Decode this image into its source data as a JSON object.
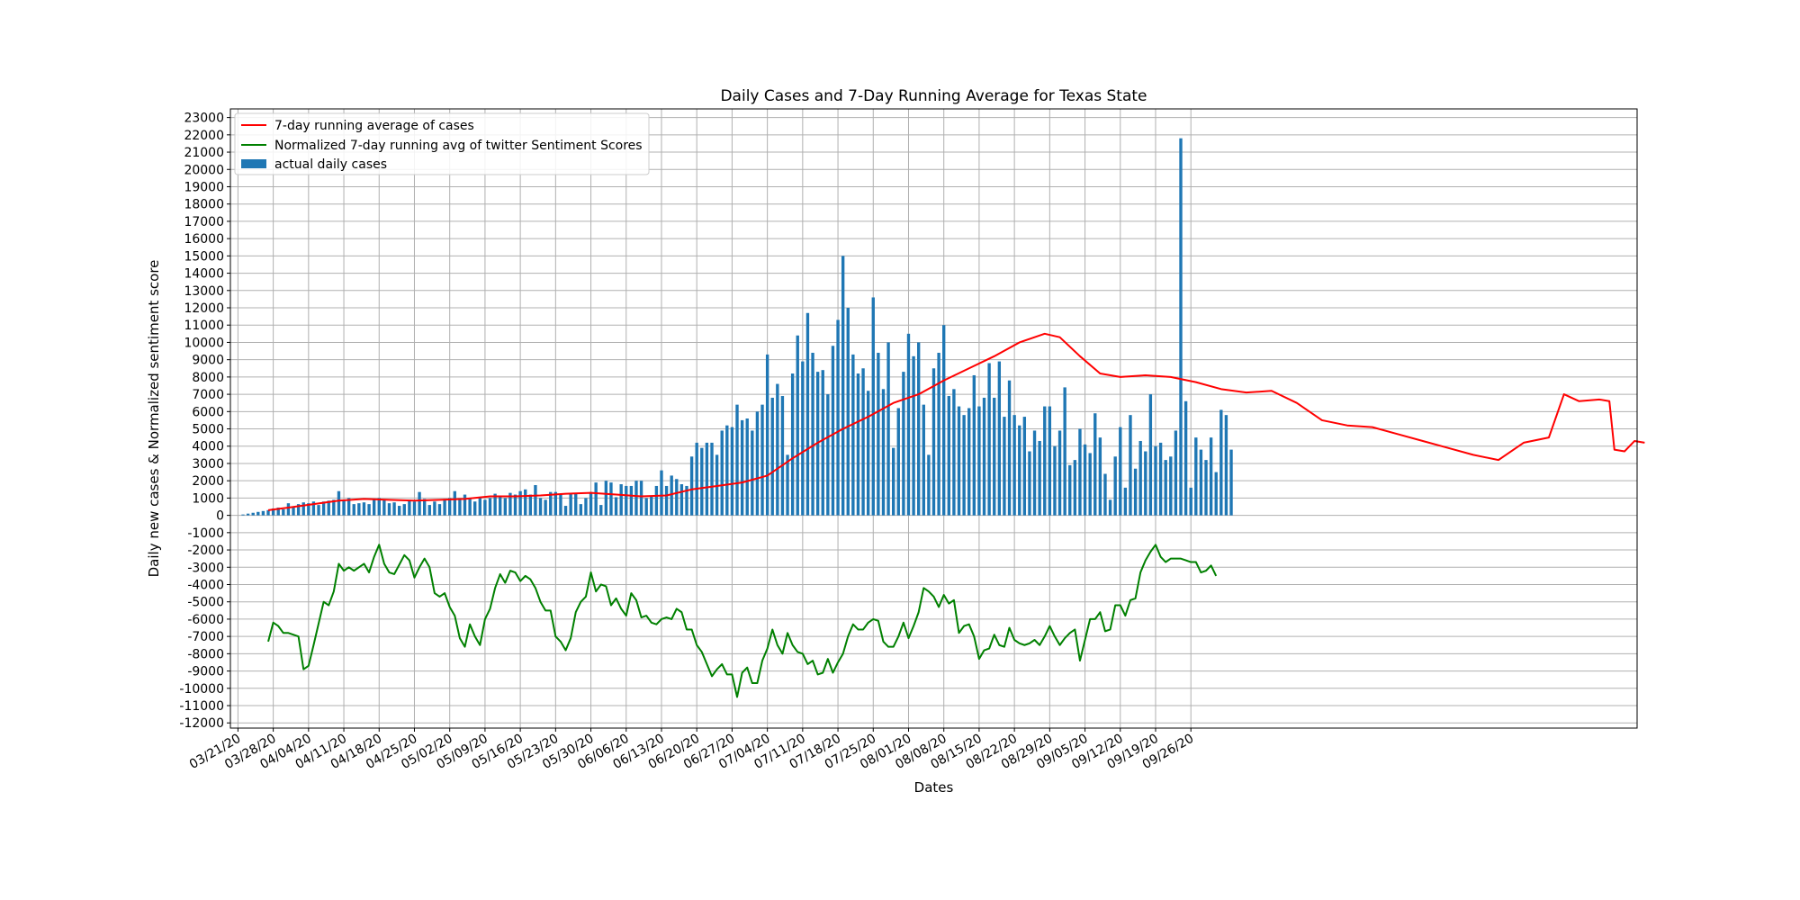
{
  "chart_data": {
    "type": "bar+line",
    "title": "Daily Cases and 7-Day Running Average for Texas State",
    "xlabel": "Dates",
    "ylabel": "Daily new cases & Normalized sentiment score",
    "ylim": [
      -12300,
      23500
    ],
    "yticks": [
      -12000,
      -11000,
      -10000,
      -9000,
      -8000,
      -7000,
      -6000,
      -5000,
      -4000,
      -3000,
      -2000,
      -1000,
      0,
      1000,
      2000,
      3000,
      4000,
      5000,
      6000,
      7000,
      8000,
      9000,
      10000,
      11000,
      12000,
      13000,
      14000,
      15000,
      16000,
      17000,
      18000,
      19000,
      20000,
      21000,
      22000,
      23000
    ],
    "date_start": "03/21/20",
    "num_days": 193,
    "xtick_labels": [
      "03/21/20",
      "03/28/20",
      "04/04/20",
      "04/11/20",
      "04/18/20",
      "04/25/20",
      "05/02/20",
      "05/09/20",
      "05/16/20",
      "05/23/20",
      "05/30/20",
      "06/06/20",
      "06/13/20",
      "06/20/20",
      "06/27/20",
      "07/04/20",
      "07/11/20",
      "07/18/20",
      "07/25/20",
      "08/01/20",
      "08/08/20",
      "08/15/20",
      "08/22/20",
      "08/29/20",
      "09/05/20",
      "09/12/20",
      "09/19/20",
      "09/26/20"
    ],
    "grid": true,
    "legend_position": "upper-left",
    "series": [
      {
        "name": "7-day running average of cases",
        "kind": "line",
        "color": "#ff0000",
        "anchors": [
          [
            6,
            300
          ],
          [
            10,
            450
          ],
          [
            15,
            650
          ],
          [
            20,
            850
          ],
          [
            25,
            950
          ],
          [
            30,
            900
          ],
          [
            35,
            850
          ],
          [
            40,
            900
          ],
          [
            45,
            950
          ],
          [
            50,
            1100
          ],
          [
            55,
            1100
          ],
          [
            60,
            1150
          ],
          [
            65,
            1250
          ],
          [
            70,
            1300
          ],
          [
            75,
            1200
          ],
          [
            80,
            1100
          ],
          [
            85,
            1150
          ],
          [
            90,
            1500
          ],
          [
            95,
            1700
          ],
          [
            100,
            1900
          ],
          [
            105,
            2300
          ],
          [
            110,
            3300
          ],
          [
            115,
            4200
          ],
          [
            120,
            5000
          ],
          [
            125,
            5700
          ],
          [
            130,
            6500
          ],
          [
            135,
            7000
          ],
          [
            140,
            7800
          ],
          [
            145,
            8500
          ],
          [
            150,
            9200
          ],
          [
            155,
            10000
          ],
          [
            160,
            10500
          ],
          [
            163,
            10300
          ],
          [
            167,
            9200
          ],
          [
            171,
            8200
          ],
          [
            175,
            8000
          ],
          [
            180,
            8100
          ],
          [
            185,
            8000
          ],
          [
            190,
            7700
          ],
          [
            195,
            7300
          ],
          [
            200,
            7100
          ],
          [
            205,
            7200
          ],
          [
            210,
            6500
          ],
          [
            215,
            5500
          ],
          [
            220,
            5200
          ],
          [
            225,
            5100
          ],
          [
            230,
            4700
          ],
          [
            235,
            4300
          ],
          [
            240,
            3900
          ],
          [
            245,
            3500
          ],
          [
            250,
            3200
          ],
          [
            255,
            4200
          ],
          [
            260,
            4500
          ],
          [
            263,
            7000
          ],
          [
            266,
            6600
          ],
          [
            270,
            6700
          ],
          [
            272,
            6600
          ],
          [
            273,
            3800
          ],
          [
            275,
            3700
          ],
          [
            277,
            4300
          ],
          [
            279,
            4200
          ]
        ]
      },
      {
        "name": "Normalized 7-day running avg of twitter Sentiment Scores",
        "kind": "line",
        "color": "#008000",
        "anchors": [
          [
            6,
            -7300
          ],
          [
            7,
            -6200
          ],
          [
            8,
            -6400
          ],
          [
            9,
            -6800
          ],
          [
            10,
            -6800
          ],
          [
            12,
            -7000
          ],
          [
            13,
            -8900
          ],
          [
            14,
            -8700
          ],
          [
            15,
            -7500
          ],
          [
            17,
            -5000
          ],
          [
            18,
            -5200
          ],
          [
            19,
            -4400
          ],
          [
            20,
            -2800
          ],
          [
            21,
            -3200
          ],
          [
            22,
            -3000
          ],
          [
            23,
            -3200
          ],
          [
            24,
            -3000
          ],
          [
            25,
            -2800
          ],
          [
            26,
            -3300
          ],
          [
            27,
            -2400
          ],
          [
            28,
            -1700
          ],
          [
            29,
            -2800
          ],
          [
            30,
            -3300
          ],
          [
            31,
            -3400
          ],
          [
            33,
            -2300
          ],
          [
            34,
            -2600
          ],
          [
            35,
            -3600
          ],
          [
            36,
            -3000
          ],
          [
            37,
            -2500
          ],
          [
            38,
            -3000
          ],
          [
            39,
            -4500
          ],
          [
            40,
            -4700
          ],
          [
            41,
            -4500
          ],
          [
            42,
            -5300
          ],
          [
            43,
            -5800
          ],
          [
            44,
            -7100
          ],
          [
            45,
            -7600
          ],
          [
            46,
            -6300
          ],
          [
            47,
            -7000
          ],
          [
            48,
            -7500
          ],
          [
            49,
            -6000
          ],
          [
            50,
            -5400
          ],
          [
            51,
            -4200
          ],
          [
            52,
            -3400
          ],
          [
            53,
            -3900
          ],
          [
            54,
            -3200
          ],
          [
            55,
            -3300
          ],
          [
            56,
            -3800
          ],
          [
            57,
            -3500
          ],
          [
            58,
            -3700
          ],
          [
            59,
            -4200
          ],
          [
            60,
            -5000
          ],
          [
            61,
            -5500
          ],
          [
            62,
            -5500
          ],
          [
            63,
            -7000
          ],
          [
            64,
            -7300
          ],
          [
            65,
            -7800
          ],
          [
            66,
            -7100
          ],
          [
            67,
            -5600
          ],
          [
            68,
            -5000
          ],
          [
            69,
            -4700
          ],
          [
            70,
            -3300
          ],
          [
            71,
            -4400
          ],
          [
            72,
            -4000
          ],
          [
            73,
            -4100
          ],
          [
            74,
            -5200
          ],
          [
            75,
            -4800
          ],
          [
            76,
            -5400
          ],
          [
            77,
            -5800
          ],
          [
            78,
            -4500
          ],
          [
            79,
            -4900
          ],
          [
            80,
            -5900
          ],
          [
            81,
            -5800
          ],
          [
            82,
            -6200
          ],
          [
            83,
            -6300
          ],
          [
            84,
            -6000
          ],
          [
            85,
            -5900
          ],
          [
            86,
            -6000
          ],
          [
            87,
            -5400
          ],
          [
            88,
            -5600
          ],
          [
            89,
            -6600
          ],
          [
            90,
            -6600
          ],
          [
            91,
            -7500
          ],
          [
            92,
            -7900
          ],
          [
            93,
            -8600
          ],
          [
            94,
            -9300
          ],
          [
            95,
            -8900
          ],
          [
            96,
            -8600
          ],
          [
            97,
            -9200
          ],
          [
            98,
            -9200
          ],
          [
            99,
            -10500
          ],
          [
            100,
            -9100
          ],
          [
            101,
            -8800
          ],
          [
            102,
            -9700
          ],
          [
            103,
            -9700
          ],
          [
            104,
            -8400
          ],
          [
            105,
            -7700
          ],
          [
            106,
            -6600
          ],
          [
            107,
            -7500
          ],
          [
            108,
            -8000
          ],
          [
            109,
            -6800
          ],
          [
            110,
            -7500
          ],
          [
            111,
            -7900
          ],
          [
            112,
            -8000
          ],
          [
            113,
            -8600
          ],
          [
            114,
            -8400
          ],
          [
            115,
            -9200
          ],
          [
            116,
            -9100
          ],
          [
            117,
            -8300
          ],
          [
            118,
            -9100
          ],
          [
            119,
            -8500
          ],
          [
            120,
            -8000
          ],
          [
            121,
            -7000
          ],
          [
            122,
            -6300
          ],
          [
            123,
            -6600
          ],
          [
            124,
            -6600
          ],
          [
            125,
            -6200
          ],
          [
            126,
            -6000
          ],
          [
            127,
            -6100
          ],
          [
            128,
            -7300
          ],
          [
            129,
            -7600
          ],
          [
            130,
            -7600
          ],
          [
            131,
            -7000
          ],
          [
            132,
            -6200
          ],
          [
            133,
            -7100
          ],
          [
            134,
            -6400
          ],
          [
            135,
            -5600
          ],
          [
            136,
            -4200
          ],
          [
            137,
            -4400
          ],
          [
            138,
            -4700
          ],
          [
            139,
            -5300
          ],
          [
            140,
            -4600
          ],
          [
            141,
            -5100
          ],
          [
            142,
            -4900
          ],
          [
            143,
            -6800
          ],
          [
            144,
            -6400
          ],
          [
            145,
            -6300
          ],
          [
            146,
            -7000
          ],
          [
            147,
            -8300
          ],
          [
            148,
            -7800
          ],
          [
            149,
            -7700
          ],
          [
            150,
            -6900
          ],
          [
            151,
            -7500
          ],
          [
            152,
            -7600
          ],
          [
            153,
            -6500
          ],
          [
            154,
            -7200
          ],
          [
            155,
            -7400
          ],
          [
            156,
            -7500
          ],
          [
            157,
            -7400
          ],
          [
            158,
            -7200
          ],
          [
            159,
            -7500
          ],
          [
            160,
            -7000
          ],
          [
            161,
            -6400
          ],
          [
            162,
            -7000
          ],
          [
            163,
            -7500
          ],
          [
            164,
            -7100
          ],
          [
            165,
            -6800
          ],
          [
            166,
            -6600
          ],
          [
            167,
            -8400
          ],
          [
            168,
            -7200
          ],
          [
            169,
            -6000
          ],
          [
            170,
            -6000
          ],
          [
            171,
            -5600
          ],
          [
            172,
            -6700
          ],
          [
            173,
            -6600
          ],
          [
            174,
            -5200
          ],
          [
            175,
            -5200
          ],
          [
            176,
            -5800
          ],
          [
            177,
            -4900
          ],
          [
            178,
            -4800
          ],
          [
            179,
            -3300
          ],
          [
            180,
            -2600
          ],
          [
            181,
            -2100
          ],
          [
            182,
            -1700
          ],
          [
            183,
            -2400
          ],
          [
            184,
            -2700
          ],
          [
            185,
            -2500
          ],
          [
            186,
            -2500
          ],
          [
            187,
            -2500
          ],
          [
            188,
            -2600
          ],
          [
            189,
            -2700
          ],
          [
            190,
            -2700
          ],
          [
            191,
            -3300
          ],
          [
            192,
            -3200
          ],
          [
            193,
            -2900
          ],
          [
            194,
            -3500
          ]
        ]
      },
      {
        "name": "actual daily cases",
        "kind": "bar",
        "color": "#1f77b4",
        "values": [
          50,
          100,
          150,
          200,
          250,
          300,
          400,
          450,
          350,
          700,
          500,
          650,
          750,
          700,
          800,
          600,
          800,
          850,
          900,
          1400,
          850,
          1000,
          650,
          700,
          750,
          650,
          950,
          1000,
          900,
          700,
          750,
          550,
          650,
          900,
          800,
          1350,
          950,
          600,
          800,
          650,
          950,
          1000,
          1400,
          1000,
          1200,
          950,
          800,
          1000,
          900,
          1000,
          1250,
          1150,
          1000,
          1300,
          1200,
          1400,
          1500,
          1200,
          1750,
          1000,
          900,
          1350,
          1350,
          1200,
          550,
          1250,
          1300,
          650,
          1000,
          1350,
          1900,
          600,
          2000,
          1900,
          1050,
          1800,
          1700,
          1700,
          2000,
          2000,
          1000,
          1100,
          1700,
          2600,
          1700,
          2300,
          2100,
          1800,
          1700,
          3400,
          4200,
          3900,
          4200,
          4200,
          3500,
          4900,
          5200,
          5100,
          6400,
          5500,
          5600,
          4900,
          6000,
          6400,
          9300,
          6800,
          7600,
          6900,
          3500,
          8200,
          10400,
          8900,
          11700,
          9400,
          8300,
          8400,
          7000,
          9800,
          11300,
          15000,
          12000,
          9300,
          8200,
          8500,
          7200,
          12600,
          9400,
          7300,
          10000,
          3900,
          6200,
          8300,
          10500,
          9200,
          10000,
          6400,
          3500,
          8500,
          9400,
          11000,
          6900,
          7300,
          6300,
          5800,
          6200,
          8100,
          6300,
          6800,
          8800,
          6800,
          8900,
          5700,
          7800,
          5800,
          5200,
          5700,
          3700,
          4900,
          4300,
          6300,
          6300,
          4000,
          4900,
          7400,
          2900,
          3200,
          5000,
          4100,
          3600,
          5900,
          4500,
          2400,
          900,
          3400,
          5100,
          1600,
          5800,
          2700,
          4300,
          3700,
          7000,
          4000,
          4200,
          3200,
          3400,
          4900,
          21800,
          6600,
          1600,
          4500,
          3800,
          3200,
          4500,
          2500,
          6100,
          5800,
          3800
        ]
      }
    ]
  }
}
